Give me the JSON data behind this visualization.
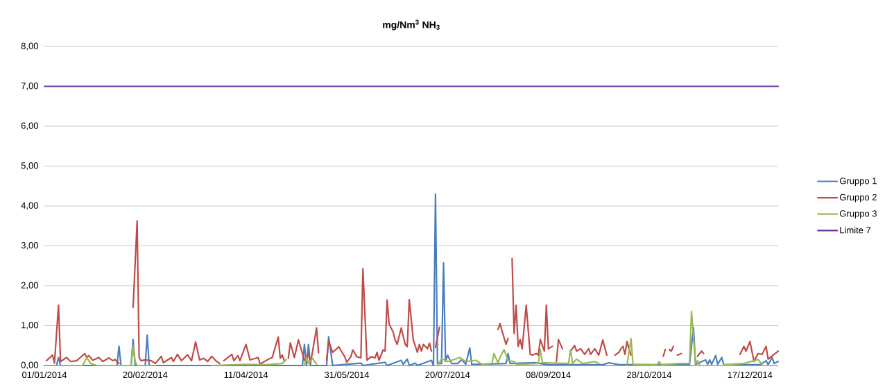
{
  "chart_data": {
    "type": "line",
    "title": "mg/Nm$^{3}$ NH$_{3}$",
    "xlim": [
      "2014-01-01",
      "2014-12-31"
    ],
    "xticks": [
      {
        "value": "2014-01-01",
        "label": "01/01/2014"
      },
      {
        "value": "2014-02-20",
        "label": "20/02/2014"
      },
      {
        "value": "2014-04-11",
        "label": "11/04/2014"
      },
      {
        "value": "2014-05-31",
        "label": "31/05/2014"
      },
      {
        "value": "2014-07-20",
        "label": "20/07/2014"
      },
      {
        "value": "2014-09-08",
        "label": "08/09/2014"
      },
      {
        "value": "2014-10-28",
        "label": "28/10/2014"
      },
      {
        "value": "2014-12-17",
        "label": "17/12/2014"
      }
    ],
    "ylim": [
      0,
      8
    ],
    "yticks": [
      {
        "value": 0,
        "label": "0,00"
      },
      {
        "value": 1,
        "label": "1,00"
      },
      {
        "value": 2,
        "label": "2,00"
      },
      {
        "value": 3,
        "label": "3,00"
      },
      {
        "value": 4,
        "label": "4,00"
      },
      {
        "value": 5,
        "label": "5,00"
      },
      {
        "value": 6,
        "label": "6,00"
      },
      {
        "value": 7,
        "label": "7,00"
      },
      {
        "value": 8,
        "label": "8,00"
      }
    ],
    "grid": "y",
    "legend": "right",
    "marker": "none",
    "line_style": "solid",
    "series": [
      {
        "name": "Gruppo 1",
        "color": "#4a7ebb",
        "x": [
          "2014-01-01",
          "2014-01-07",
          "2014-01-08",
          "2014-01-09",
          "2014-02-06",
          "2014-02-07",
          "2014-02-08",
          "2014-02-13",
          "2014-02-14",
          "2014-02-15",
          "2014-02-20",
          "2014-02-21",
          "2014-02-22",
          "2014-05-09",
          "2014-05-10",
          "2014-05-11",
          "2014-05-12",
          "2014-05-13",
          "2014-05-21",
          "2014-05-22",
          "2014-05-24",
          "2014-06-07",
          "2014-06-08",
          "2014-06-19",
          "2014-06-20",
          "2014-06-27",
          "2014-06-28",
          "2014-06-30",
          "2014-07-01",
          "2014-07-04",
          "2014-07-05",
          "2014-07-12",
          "2014-07-13",
          "2014-07-14",
          "2014-07-15",
          "2014-07-17",
          "2014-07-18",
          "2014-07-19",
          "2014-07-20",
          "2014-07-22",
          "2014-07-25",
          "2014-07-27",
          "2014-07-29",
          "2014-07-31",
          "2014-08-01",
          "2014-08-05",
          "2014-08-18",
          "2014-08-19",
          "2014-08-20",
          "2014-09-01",
          "2014-09-08",
          "2014-09-18",
          "2014-09-28",
          "2014-10-05",
          "2014-10-08",
          "2014-10-13",
          "2014-10-28",
          "2014-11-17",
          "2014-11-19",
          "2014-11-20",
          "2014-11-25",
          "2014-11-26",
          "2014-11-27",
          "2014-11-28",
          "2014-11-30",
          "2014-12-01",
          "2014-12-03",
          "2014-12-04",
          "2014-12-05",
          "2014-12-09",
          "2014-12-22",
          "2014-12-25",
          "2014-12-26",
          "2014-12-28",
          "2014-12-29",
          "2014-12-31"
        ],
        "values": [
          0,
          0,
          0.2,
          0,
          0,
          0.48,
          0,
          0,
          0.65,
          0,
          0,
          0.76,
          0,
          0,
          0.53,
          0,
          0.53,
          0,
          0,
          0.72,
          0,
          0.06,
          0,
          0.08,
          0,
          0.13,
          0.03,
          0.16,
          0,
          0.06,
          0,
          0.13,
          0,
          4.3,
          0.05,
          0.05,
          2.57,
          0.1,
          0.26,
          0.05,
          0.05,
          0.15,
          0.03,
          0.44,
          0.03,
          0.03,
          0.05,
          0.3,
          0.05,
          0.07,
          0.02,
          0.02,
          0.02,
          0.02,
          0.07,
          0.02,
          0.02,
          0.02,
          0.95,
          0.03,
          0.14,
          0.03,
          0.14,
          0.03,
          0.25,
          0.03,
          0.2,
          0.02,
          null,
          0.02,
          0.02,
          0.12,
          0.02,
          0.2,
          0.05,
          0.1
        ]
      },
      {
        "name": "Gruppo 2",
        "color": "#be4b48",
        "x": [
          "2014-01-02",
          "2014-01-05",
          "2014-01-06",
          "2014-01-08",
          "2014-01-09",
          "2014-01-12",
          "2014-01-14",
          "2014-01-17",
          "2014-01-21",
          "2014-01-22",
          "2014-01-23",
          "2014-01-25",
          "2014-01-28",
          "2014-01-30",
          "2014-02-02",
          "2014-02-04",
          "2014-02-05",
          "2014-02-07",
          "2014-02-10",
          "2014-02-14",
          "2014-02-16",
          "2014-02-17",
          "2014-02-18",
          "2014-02-20",
          "2014-02-23",
          "2014-02-25",
          "2014-02-28",
          "2014-03-01",
          "2014-03-05",
          "2014-03-06",
          "2014-03-08",
          "2014-03-10",
          "2014-03-13",
          "2014-03-15",
          "2014-03-17",
          "2014-03-19",
          "2014-03-21",
          "2014-03-23",
          "2014-03-25",
          "2014-03-27",
          "2014-03-29",
          "2014-03-30",
          "2014-03-31",
          "2014-04-04",
          "2014-04-05",
          "2014-04-07",
          "2014-04-08",
          "2014-04-11",
          "2014-04-13",
          "2014-04-17",
          "2014-04-18",
          "2014-04-23",
          "2014-04-24",
          "2014-04-27",
          "2014-04-28",
          "2014-04-29",
          "2014-04-30",
          "2014-05-01",
          "2014-05-02",
          "2014-05-03",
          "2014-05-05",
          "2014-05-07",
          "2014-05-09",
          "2014-05-10",
          "2014-05-12",
          "2014-05-13",
          "2014-05-16",
          "2014-05-17",
          "2014-05-19",
          "2014-05-21",
          "2014-05-22",
          "2014-05-24",
          "2014-05-26",
          "2014-05-27",
          "2014-05-30",
          "2014-05-31",
          "2014-06-02",
          "2014-06-03",
          "2014-06-05",
          "2014-06-07",
          "2014-06-08",
          "2014-06-10",
          "2014-06-12",
          "2014-06-14",
          "2014-06-15",
          "2014-06-16",
          "2014-06-18",
          "2014-06-19",
          "2014-06-20",
          "2014-06-21",
          "2014-06-23",
          "2014-06-24",
          "2014-06-25",
          "2014-06-27",
          "2014-06-29",
          "2014-06-30",
          "2014-07-01",
          "2014-07-03",
          "2014-07-05",
          "2014-07-06",
          "2014-07-07",
          "2014-07-08",
          "2014-07-10",
          "2014-07-11",
          "2014-07-12",
          "2014-07-13",
          "2014-07-14",
          "2014-07-16",
          "2014-07-17",
          "2014-08-14",
          "2014-08-15",
          "2014-08-17",
          "2014-08-18",
          "2014-08-19",
          "2014-08-20",
          "2014-08-21",
          "2014-08-22",
          "2014-08-23",
          "2014-08-24",
          "2014-08-25",
          "2014-08-26",
          "2014-08-28",
          "2014-08-30",
          "2014-08-31",
          "2014-09-02",
          "2014-09-03",
          "2014-09-04",
          "2014-09-06",
          "2014-09-07",
          "2014-09-08",
          "2014-09-10",
          "2014-09-11",
          "2014-09-12",
          "2014-09-13",
          "2014-09-15",
          "2014-09-17",
          "2014-09-19",
          "2014-09-21",
          "2014-09-22",
          "2014-09-24",
          "2014-09-26",
          "2014-09-28",
          "2014-09-29",
          "2014-10-01",
          "2014-10-03",
          "2014-10-05",
          "2014-10-07",
          "2014-10-09",
          "2014-10-11",
          "2014-10-13",
          "2014-10-14",
          "2014-10-15",
          "2014-10-16",
          "2014-10-17",
          "2014-10-19",
          "2014-10-20",
          "2014-11-04",
          "2014-11-05",
          "2014-11-06",
          "2014-11-07",
          "2014-11-08",
          "2014-11-09",
          "2014-11-10",
          "2014-11-11",
          "2014-11-13",
          "2014-11-15",
          "2014-11-21",
          "2014-11-23",
          "2014-11-24",
          "2014-11-26",
          "2014-12-12",
          "2014-12-14",
          "2014-12-15",
          "2014-12-17",
          "2014-12-19",
          "2014-12-21",
          "2014-12-23",
          "2014-12-25",
          "2014-12-26",
          "2014-12-29",
          "2014-12-31"
        ],
        "values": [
          0.12,
          0.26,
          0.06,
          1.51,
          0.1,
          0.2,
          0.1,
          0.12,
          0.3,
          0.2,
          0.25,
          0.13,
          0.2,
          0.1,
          0.19,
          0.12,
          0.15,
          0.05,
          null,
          1.46,
          3.63,
          0.2,
          0.12,
          0.14,
          0.12,
          0.05,
          0.23,
          0.07,
          0.2,
          0.1,
          0.28,
          0.12,
          0.27,
          0.12,
          0.59,
          0.14,
          0.18,
          0.1,
          0.23,
          0.12,
          0.05,
          null,
          0.12,
          0.28,
          0.12,
          0.25,
          0.12,
          0.53,
          0.14,
          0.2,
          0.04,
          0.18,
          0.2,
          0.71,
          0.18,
          0.26,
          0.12,
          null,
          0.18,
          0.57,
          0.2,
          0.64,
          0.3,
          0.12,
          0.3,
          0.05,
          0.94,
          0.32,
          null,
          0.14,
          0.61,
          0.33,
          0.42,
          0.47,
          0.22,
          0.08,
          0.22,
          0.39,
          0.22,
          0.19,
          2.43,
          0.13,
          0.22,
          0.19,
          0.33,
          0.13,
          0.39,
          0.36,
          1.64,
          1.04,
          0.84,
          0.64,
          0.53,
          0.94,
          0.53,
          0.47,
          1.65,
          0.64,
          0.33,
          0.53,
          0.36,
          0.53,
          0.42,
          0.56,
          0.36,
          null,
          0.45,
          0.96,
          null,
          0.9,
          1.05,
          0.7,
          0.53,
          0.68,
          null,
          2.68,
          0.8,
          1.51,
          0.48,
          0.65,
          0.42,
          1.51,
          0.28,
          0.26,
          0.3,
          0.26,
          0.65,
          0.36,
          1.51,
          0.42,
          0.48,
          null,
          0.1,
          0.65,
          0.42,
          null,
          0.36,
          0.5,
          0.36,
          0.42,
          0.28,
          0.42,
          0.28,
          0.42,
          0.26,
          0.64,
          0.26,
          null,
          0.26,
          0.33,
          0.42,
          0.48,
          0.28,
          0.6,
          0.26,
          null,
          0.23,
          0.4,
          null,
          0.4,
          0.36,
          0.48,
          null,
          0.26,
          0.3,
          null,
          0.23,
          0.36,
          0.3,
          null,
          0.28,
          0.48,
          0.36,
          0.6,
          0.1,
          0.3,
          0.28,
          0.48,
          0.16,
          0.28,
          0.36
        ]
      },
      {
        "name": "Gruppo 3",
        "color": "#98b954",
        "x": [
          "2014-01-01",
          "2014-01-20",
          "2014-01-22",
          "2014-01-24",
          "2014-01-27",
          "2014-02-13",
          "2014-02-14",
          "2014-02-15",
          "2014-02-16",
          "2014-02-25",
          "2014-02-26",
          "2014-03-25",
          "2014-04-11",
          "2014-04-21",
          "2014-04-29",
          "2014-05-01",
          "2014-05-02",
          "2014-05-10",
          "2014-05-11",
          "2014-05-12",
          "2014-05-14",
          "2014-05-16",
          "2014-05-17",
          "2014-07-15",
          "2014-07-17",
          "2014-07-20",
          "2014-07-22",
          "2014-07-26",
          "2014-07-29",
          "2014-08-03",
          "2014-08-06",
          "2014-08-11",
          "2014-08-12",
          "2014-08-14",
          "2014-08-15",
          "2014-08-17",
          "2014-08-19",
          "2014-08-22",
          "2014-08-23",
          "2014-09-03",
          "2014-09-04",
          "2014-09-05",
          "2014-09-18",
          "2014-09-19",
          "2014-09-20",
          "2014-09-22",
          "2014-09-25",
          "2014-10-01",
          "2014-10-03",
          "2014-10-04",
          "2014-10-17",
          "2014-10-19",
          "2014-10-20",
          "2014-11-01",
          "2014-11-02",
          "2014-11-03",
          "2014-11-12",
          "2014-11-17",
          "2014-11-18",
          "2014-11-20",
          "2014-11-21",
          "2014-11-22",
          "2014-11-23",
          "2014-12-04",
          "2014-12-14",
          "2014-12-21",
          "2014-12-23"
        ],
        "values": [
          0,
          0,
          0.2,
          0.05,
          0,
          0,
          0.5,
          0.1,
          0,
          0,
          null,
          0,
          0.03,
          0.02,
          0.05,
          0.15,
          null,
          0,
          0.2,
          0.05,
          0.18,
          0.03,
          null,
          0,
          0.17,
          0.1,
          0.13,
          0.2,
          0.1,
          0.13,
          0.03,
          0.05,
          0.3,
          0.07,
          0.2,
          0.4,
          0.12,
          0.1,
          0.03,
          0.05,
          0.4,
          0.07,
          0.05,
          0.4,
          0.05,
          0.16,
          0.05,
          0.1,
          0.05,
          null,
          0.02,
          0.67,
          0.03,
          0.02,
          0.1,
          0.02,
          0.05,
          0.05,
          1.36,
          0.05,
          0.12,
          0.02,
          null,
          0.02,
          0.05,
          0.15,
          0.02
        ]
      },
      {
        "name": "Limite 7",
        "color": "#7030a0",
        "x": [
          "2014-01-01",
          "2014-12-31"
        ],
        "values": [
          7,
          7
        ]
      }
    ]
  }
}
